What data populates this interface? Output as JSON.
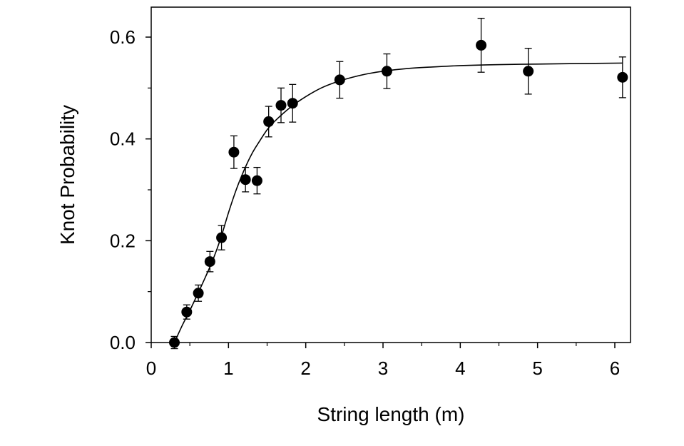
{
  "chart_data": {
    "type": "scatter",
    "title": "",
    "xlabel": "String length (m)",
    "ylabel": "Knot Probability",
    "xlim": [
      0,
      6.15
    ],
    "ylim": [
      0,
      0.66
    ],
    "xticks": [
      0,
      1,
      2,
      3,
      4,
      5,
      6
    ],
    "yticks": [
      0.0,
      0.2,
      0.4,
      0.6
    ],
    "xtick_labels": [
      "0",
      "1",
      "2",
      "3",
      "4",
      "5",
      "6"
    ],
    "ytick_labels": [
      "0.0",
      "0.2",
      "0.4",
      "0.6"
    ],
    "grid": false,
    "legend": "none",
    "point_color": "#000000",
    "series": [
      {
        "points": [
          {
            "x": 0.3,
            "y": 0.0,
            "err": 0.012
          },
          {
            "x": 0.46,
            "y": 0.06,
            "err": 0.014
          },
          {
            "x": 0.61,
            "y": 0.097,
            "err": 0.016
          },
          {
            "x": 0.76,
            "y": 0.159,
            "err": 0.02
          },
          {
            "x": 0.91,
            "y": 0.206,
            "err": 0.024
          },
          {
            "x": 1.07,
            "y": 0.374,
            "err": 0.032
          },
          {
            "x": 1.22,
            "y": 0.32,
            "err": 0.024
          },
          {
            "x": 1.37,
            "y": 0.318,
            "err": 0.026
          },
          {
            "x": 1.52,
            "y": 0.434,
            "err": 0.03
          },
          {
            "x": 1.68,
            "y": 0.466,
            "err": 0.034
          },
          {
            "x": 1.83,
            "y": 0.47,
            "err": 0.037
          },
          {
            "x": 2.44,
            "y": 0.516,
            "err": 0.036
          },
          {
            "x": 3.05,
            "y": 0.533,
            "err": 0.034
          },
          {
            "x": 4.27,
            "y": 0.584,
            "err": 0.053
          },
          {
            "x": 4.88,
            "y": 0.533,
            "err": 0.045
          },
          {
            "x": 6.1,
            "y": 0.521,
            "err": 0.04
          }
        ]
      }
    ],
    "fit_curve": {
      "x": [
        0.3,
        0.4,
        0.5,
        0.6,
        0.7,
        0.8,
        0.9,
        1.0,
        1.1,
        1.2,
        1.3,
        1.4,
        1.5,
        1.6,
        1.8,
        2.0,
        2.2,
        2.4,
        2.6,
        2.8,
        3.0,
        3.3,
        3.6,
        4.0,
        4.5,
        5.0,
        5.5,
        6.1
      ],
      "y": [
        0.0,
        0.033,
        0.063,
        0.095,
        0.128,
        0.163,
        0.205,
        0.255,
        0.3,
        0.338,
        0.37,
        0.395,
        0.418,
        0.435,
        0.462,
        0.483,
        0.5,
        0.512,
        0.521,
        0.528,
        0.533,
        0.538,
        0.541,
        0.544,
        0.546,
        0.547,
        0.548,
        0.549
      ]
    }
  }
}
